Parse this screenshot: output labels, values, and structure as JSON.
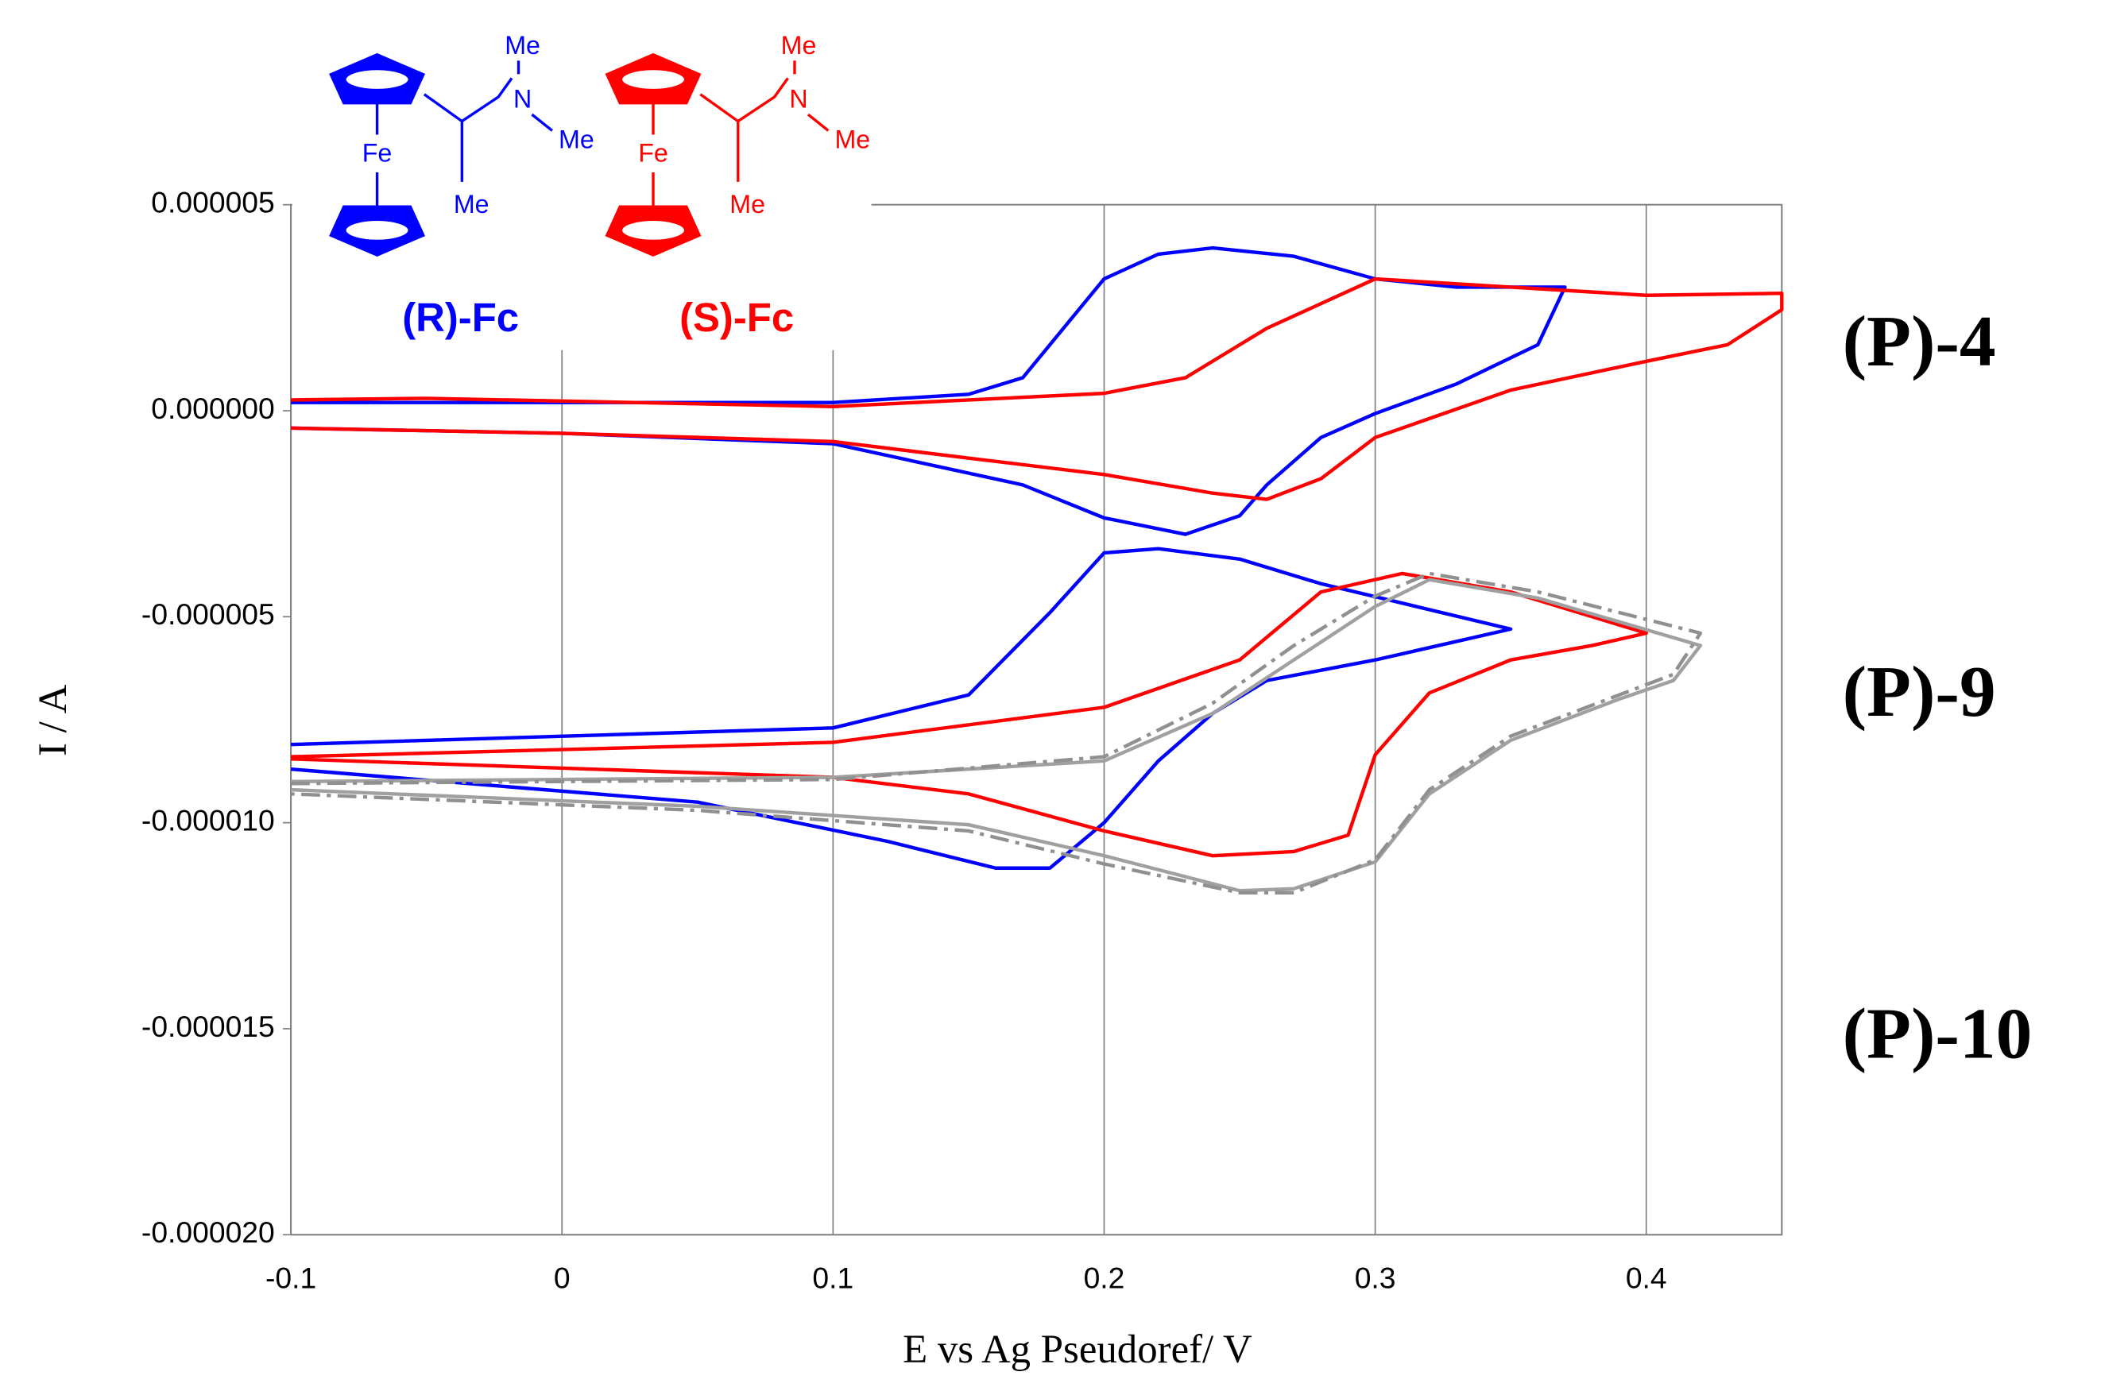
{
  "chart_data": {
    "type": "line",
    "xlabel": "E vs Ag Pseudoref/ V",
    "ylabel": "I / A",
    "xlim": [
      -0.1,
      0.45
    ],
    "xticks": [
      -0.1,
      0,
      0.1,
      0.2,
      0.3,
      0.4
    ],
    "ylim": [
      -2e-05,
      5e-06
    ],
    "yticks": [
      {
        "value": 5e-06,
        "label": "0.000005"
      },
      {
        "value": 0,
        "label": "0.000000"
      },
      {
        "value": -5e-06,
        "label": "-0.000005"
      },
      {
        "value": -1e-05,
        "label": "-0.000010"
      },
      {
        "value": -1.5e-05,
        "label": "-0.000015"
      },
      {
        "value": -2e-05,
        "label": "-0.000020"
      }
    ],
    "grid": "x",
    "annotations": [
      {
        "text": "(P)-4",
        "y": 1.5e-06
      },
      {
        "text": "(P)-9",
        "y": -7e-06
      },
      {
        "text": "(P)-10",
        "y": -1.53e-05
      }
    ],
    "structures": [
      {
        "label": "(R)-Fc",
        "color": "#0000ff",
        "atoms": [
          "Me",
          "N",
          "Me",
          "Fe",
          "Me"
        ]
      },
      {
        "label": "(S)-Fc",
        "color": "#ff0000",
        "atoms": [
          "Me",
          "N",
          "Me",
          "Fe",
          "Me"
        ]
      }
    ],
    "series": [
      {
        "color": "#0000ff",
        "linestyle": "solid",
        "x": [
          -0.1,
          0.1,
          0.15,
          0.17,
          0.2,
          0.22,
          0.24,
          0.27,
          0.3,
          0.33,
          0.37,
          0.36,
          0.33,
          0.3,
          0.28,
          0.26,
          0.25,
          0.23,
          0.2,
          0.17,
          0.1,
          0,
          -0.1
        ],
        "values": [
          2e-07,
          2e-07,
          4e-07,
          8e-07,
          3.2e-06,
          3.8e-06,
          3.95e-06,
          3.75e-06,
          3.2e-06,
          3e-06,
          3e-06,
          1.6e-06,
          6.5e-07,
          -7e-08,
          -6.5e-07,
          -1.8e-06,
          -2.55e-06,
          -3e-06,
          -2.6e-06,
          -1.8e-06,
          -8e-07,
          -5.5e-07,
          -4.2e-07
        ]
      },
      {
        "color": "#ff0000",
        "linestyle": "solid",
        "x": [
          -0.1,
          -0.05,
          0.1,
          0.2,
          0.23,
          0.26,
          0.3,
          0.35,
          0.4,
          0.45,
          0.45,
          0.43,
          0.4,
          0.35,
          0.3,
          0.28,
          0.26,
          0.24,
          0.2,
          0.15,
          0.1,
          0,
          -0.1
        ],
        "values": [
          2.6e-07,
          3e-07,
          1e-07,
          4.2e-07,
          8e-07,
          2e-06,
          3.2e-06,
          3e-06,
          2.8e-06,
          2.85e-06,
          2.45e-06,
          1.6e-06,
          1.2e-06,
          5e-07,
          -6.5e-07,
          -1.65e-06,
          -2.15e-06,
          -2e-06,
          -1.55e-06,
          -1.15e-06,
          -7.5e-07,
          -5.5e-07,
          -4.2e-07
        ]
      },
      {
        "color": "#0000ff",
        "linestyle": "solid",
        "x": [
          -0.1,
          0.1,
          0.15,
          0.18,
          0.2,
          0.22,
          0.25,
          0.28,
          0.35,
          0.3,
          0.26,
          0.24,
          0.22,
          0.2,
          0.18,
          0.16,
          0.12,
          0.05,
          -0.1
        ],
        "values": [
          -8.1e-06,
          -7.7e-06,
          -6.9e-06,
          -4.9e-06,
          -3.45e-06,
          -3.35e-06,
          -3.6e-06,
          -4.2e-06,
          -5.3e-06,
          -6.05e-06,
          -6.55e-06,
          -7.35e-06,
          -8.5e-06,
          -1e-05,
          -1.11e-05,
          -1.11e-05,
          -1.045e-05,
          -9.5e-06,
          -8.7e-06
        ]
      },
      {
        "color": "#ff0000",
        "linestyle": "solid",
        "x": [
          -0.1,
          0.1,
          0.2,
          0.25,
          0.28,
          0.31,
          0.35,
          0.4,
          0.38,
          0.35,
          0.32,
          0.3,
          0.29,
          0.27,
          0.24,
          0.2,
          0.15,
          0.1,
          -0.1
        ],
        "values": [
          -8.4e-06,
          -8.05e-06,
          -7.2e-06,
          -6.05e-06,
          -4.4e-06,
          -3.95e-06,
          -4.4e-06,
          -5.4e-06,
          -5.7e-06,
          -6.05e-06,
          -6.85e-06,
          -8.35e-06,
          -1.03e-05,
          -1.07e-05,
          -1.08e-05,
          -1.02e-05,
          -9.3e-06,
          -8.9e-06,
          -8.45e-06
        ]
      },
      {
        "color": "#a0a0a0",
        "linestyle": "solid",
        "x": [
          -0.1,
          0.1,
          0.2,
          0.24,
          0.27,
          0.3,
          0.32,
          0.36,
          0.42,
          0.41,
          0.39,
          0.35,
          0.32,
          0.3,
          0.27,
          0.25,
          0.2,
          0.15,
          0.05,
          -0.1
        ],
        "values": [
          -9e-06,
          -8.9e-06,
          -8.5e-06,
          -7.35e-06,
          -6.05e-06,
          -4.75e-06,
          -4.1e-06,
          -4.55e-06,
          -5.7e-06,
          -6.55e-06,
          -7e-06,
          -8e-06,
          -9.3e-06,
          -1.095e-05,
          -1.16e-05,
          -1.165e-05,
          -1.08e-05,
          -1.005e-05,
          -9.6e-06,
          -9.2e-06
        ]
      },
      {
        "color": "#909090",
        "linestyle": "dashdot",
        "x": [
          -0.1,
          0.1,
          0.2,
          0.24,
          0.27,
          0.3,
          0.32,
          0.36,
          0.42,
          0.41,
          0.39,
          0.35,
          0.32,
          0.3,
          0.27,
          0.25,
          0.2,
          0.15,
          0.05,
          -0.1
        ],
        "values": [
          -9.05e-06,
          -8.95e-06,
          -8.4e-06,
          -7.1e-06,
          -5.7e-06,
          -4.5e-06,
          -3.95e-06,
          -4.4e-06,
          -5.4e-06,
          -6.4e-06,
          -6.9e-06,
          -7.9e-06,
          -9.2e-06,
          -1.09e-05,
          -1.17e-05,
          -1.17e-05,
          -1.1e-05,
          -1.02e-05,
          -9.7e-06,
          -9.3e-06
        ]
      }
    ]
  }
}
